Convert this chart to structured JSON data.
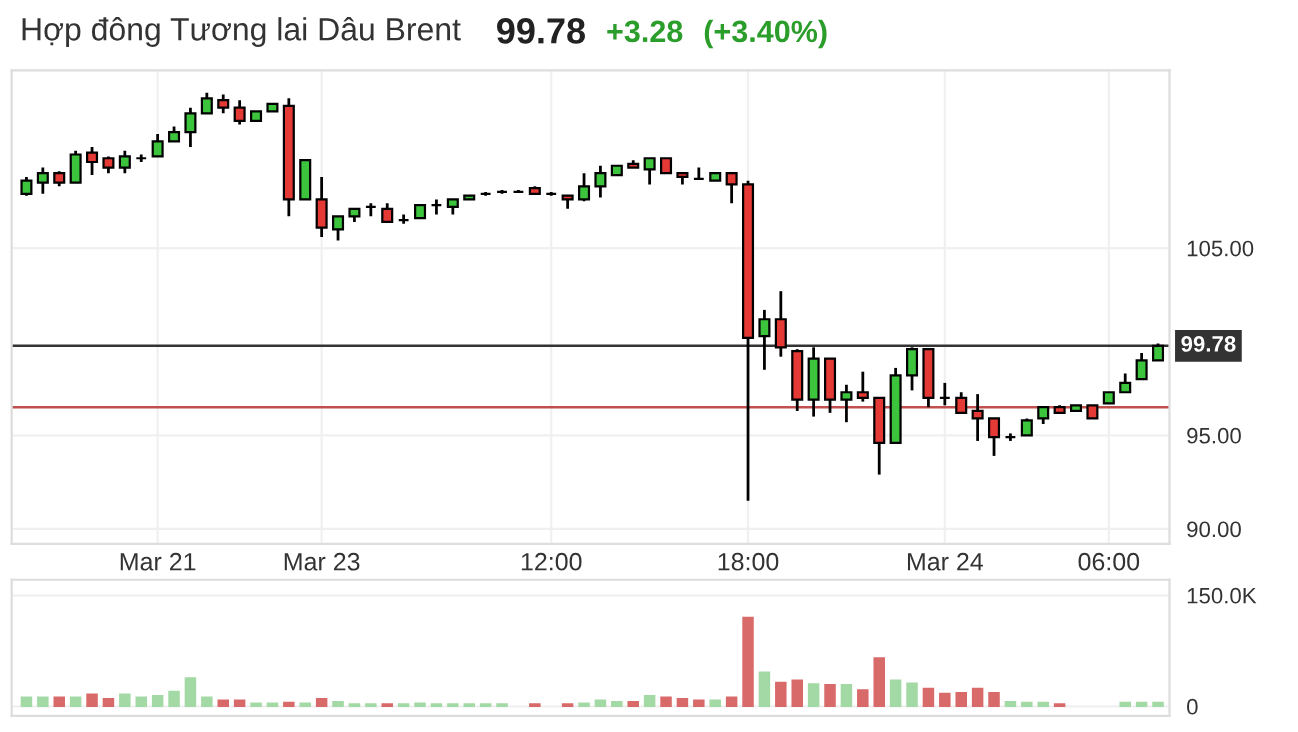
{
  "chart_data": [
    {
      "type": "candlestick",
      "title": "Hợp đông Tương lai Dâu Brent",
      "annotations": [
        "99.78",
        "+3.28",
        "(+3.40%)"
      ],
      "categories": [
        null,
        null,
        null,
        null,
        null,
        null,
        null,
        null,
        "Mar 21",
        null,
        null,
        null,
        null,
        null,
        null,
        null,
        null,
        null,
        "Mar 23",
        null,
        null,
        null,
        null,
        null,
        null,
        null,
        null,
        null,
        null,
        null,
        null,
        null,
        "12:00",
        null,
        null,
        null,
        null,
        null,
        null,
        null,
        null,
        null,
        null,
        null,
        "18:00",
        null,
        null,
        null,
        null,
        null,
        null,
        null,
        null,
        null,
        null,
        null,
        "Mar 24",
        null,
        null,
        null,
        null,
        null,
        null,
        null,
        null,
        null,
        "06:00",
        null,
        null,
        null
      ],
      "ohlc": [
        [
          107.9,
          108.8,
          107.8,
          108.6
        ],
        [
          108.5,
          109.3,
          107.9,
          109.0
        ],
        [
          109.0,
          109.1,
          108.3,
          108.5
        ],
        [
          108.5,
          110.2,
          108.5,
          110.0
        ],
        [
          110.1,
          110.4,
          108.9,
          109.6
        ],
        [
          109.8,
          109.9,
          109.0,
          109.3
        ],
        [
          109.3,
          110.2,
          109.0,
          109.9
        ],
        [
          109.8,
          110.0,
          109.6,
          109.8
        ],
        [
          109.9,
          111.1,
          109.9,
          110.7
        ],
        [
          110.7,
          111.5,
          110.7,
          111.2
        ],
        [
          111.2,
          112.5,
          110.4,
          112.2
        ],
        [
          112.2,
          113.3,
          112.2,
          113.0
        ],
        [
          112.9,
          113.2,
          112.2,
          112.5
        ],
        [
          112.5,
          112.9,
          111.6,
          111.8
        ],
        [
          111.8,
          112.3,
          111.8,
          112.3
        ],
        [
          112.3,
          112.7,
          112.3,
          112.7
        ],
        [
          112.6,
          113.0,
          106.7,
          107.6
        ],
        [
          107.6,
          109.7,
          107.6,
          109.7
        ],
        [
          107.6,
          108.8,
          105.6,
          106.1
        ],
        [
          106.0,
          106.7,
          105.4,
          106.7
        ],
        [
          106.7,
          107.1,
          106.4,
          107.1
        ],
        [
          107.2,
          107.4,
          106.7,
          107.2
        ],
        [
          107.1,
          107.4,
          106.4,
          106.4
        ],
        [
          106.5,
          106.8,
          106.3,
          106.5
        ],
        [
          106.6,
          107.3,
          106.6,
          107.3
        ],
        [
          107.3,
          107.6,
          106.8,
          107.3
        ],
        [
          107.2,
          107.6,
          106.8,
          107.6
        ],
        [
          107.6,
          107.8,
          107.6,
          107.8
        ],
        [
          107.9,
          108.0,
          107.8,
          107.9
        ],
        [
          108.0,
          108.1,
          107.9,
          108.0
        ],
        [
          108.0,
          108.1,
          108.0,
          108.0
        ],
        [
          108.2,
          108.3,
          107.9,
          107.9
        ],
        [
          107.9,
          108.0,
          107.8,
          107.9
        ],
        [
          107.8,
          107.8,
          107.1,
          107.6
        ],
        [
          107.6,
          109.0,
          107.5,
          108.3
        ],
        [
          108.3,
          109.4,
          107.7,
          109.0
        ],
        [
          108.9,
          109.4,
          108.9,
          109.4
        ],
        [
          109.5,
          109.7,
          109.3,
          109.3
        ],
        [
          109.2,
          109.8,
          108.4,
          109.8
        ],
        [
          109.8,
          109.8,
          109.0,
          109.0
        ],
        [
          109.0,
          109.0,
          108.4,
          108.8
        ],
        [
          108.7,
          109.3,
          108.7,
          108.7
        ],
        [
          108.6,
          109.0,
          108.6,
          109.0
        ],
        [
          109.0,
          109.0,
          107.4,
          108.4
        ],
        [
          108.4,
          108.6,
          91.5,
          100.2
        ],
        [
          100.3,
          101.7,
          98.5,
          101.2
        ],
        [
          101.2,
          102.7,
          99.2,
          99.7
        ],
        [
          99.5,
          99.6,
          96.3,
          96.9
        ],
        [
          96.9,
          99.7,
          96.0,
          99.1
        ],
        [
          99.1,
          99.1,
          96.2,
          96.9
        ],
        [
          96.9,
          97.7,
          95.7,
          97.3
        ],
        [
          97.3,
          98.4,
          96.8,
          97.0
        ],
        [
          97.0,
          97.0,
          92.9,
          94.6
        ],
        [
          94.6,
          98.6,
          94.6,
          98.2
        ],
        [
          98.2,
          99.7,
          97.4,
          99.6
        ],
        [
          99.6,
          99.6,
          96.5,
          97.0
        ],
        [
          97.0,
          97.8,
          96.6,
          97.0
        ],
        [
          97.0,
          97.3,
          96.2,
          96.2
        ],
        [
          96.3,
          97.2,
          94.7,
          95.9
        ],
        [
          95.9,
          95.9,
          93.9,
          94.9
        ],
        [
          94.9,
          95.1,
          94.7,
          94.9
        ],
        [
          95.0,
          95.9,
          95.0,
          95.8
        ],
        [
          95.9,
          96.5,
          95.6,
          96.5
        ],
        [
          96.5,
          96.6,
          96.2,
          96.2
        ],
        [
          96.3,
          96.6,
          96.3,
          96.6
        ],
        [
          96.6,
          96.6,
          95.9,
          95.9
        ],
        [
          96.7,
          97.3,
          96.7,
          97.3
        ],
        [
          97.3,
          98.3,
          97.3,
          97.8
        ],
        [
          98.0,
          99.4,
          98.0,
          99.0
        ],
        [
          99.0,
          99.9,
          99.0,
          99.78
        ]
      ],
      "colors": [
        "#3dc43d",
        "#3dc43d",
        "#e53935",
        "#3dc43d",
        "#e53935",
        "#e53935",
        "#3dc43d",
        "#000000",
        "#3dc43d",
        "#3dc43d",
        "#3dc43d",
        "#3dc43d",
        "#e53935",
        "#e53935",
        "#3dc43d",
        "#3dc43d",
        "#e53935",
        "#3dc43d",
        "#e53935",
        "#3dc43d",
        "#3dc43d",
        "#000000",
        "#e53935",
        "#000000",
        "#3dc43d",
        "#000000",
        "#3dc43d",
        "#3dc43d",
        "#000000",
        "#000000",
        "#000000",
        "#e53935",
        "#000000",
        "#e53935",
        "#3dc43d",
        "#3dc43d",
        "#3dc43d",
        "#e53935",
        "#3dc43d",
        "#e53935",
        "#e53935",
        "#000000",
        "#3dc43d",
        "#e53935",
        "#e53935",
        "#3dc43d",
        "#e53935",
        "#e53935",
        "#3dc43d",
        "#e53935",
        "#3dc43d",
        "#e53935",
        "#e53935",
        "#3dc43d",
        "#3dc43d",
        "#e53935",
        "#000000",
        "#e53935",
        "#e53935",
        "#e53935",
        "#000000",
        "#3dc43d",
        "#3dc43d",
        "#e53935",
        "#3dc43d",
        "#e53935",
        "#3dc43d",
        "#3dc43d",
        "#3dc43d",
        "#3dc43d"
      ],
      "ylim": [
        89.2,
        114.5
      ],
      "yticks": [
        {
          "value": 90,
          "label": "90.00"
        },
        {
          "value": 95,
          "label": "95.00"
        },
        {
          "value": 105,
          "label": "105.00"
        }
      ],
      "ref_lines": [
        {
          "axis": "y",
          "value": 99.78,
          "label": "99.78",
          "color": "#333333"
        },
        {
          "axis": "y",
          "value": 96.5,
          "color": "#c0504d"
        }
      ],
      "grid": true
    },
    {
      "type": "bar",
      "categories": [
        null,
        null,
        null,
        null,
        null,
        null,
        null,
        null,
        null,
        null,
        null,
        null,
        null,
        null,
        null,
        null,
        null,
        null,
        null,
        null,
        null,
        null,
        null,
        null,
        null,
        null,
        null,
        null,
        null,
        null,
        null,
        null,
        null,
        null,
        null,
        null,
        null,
        null,
        null,
        null,
        null,
        null,
        null,
        null,
        null,
        null,
        null,
        null,
        null,
        null,
        null,
        null,
        null,
        null,
        null,
        null,
        null,
        null,
        null,
        null,
        null,
        null,
        null,
        null,
        null,
        null,
        null,
        null,
        null,
        null
      ],
      "values": [
        12000,
        12000,
        12000,
        12000,
        16000,
        10000,
        16000,
        12000,
        14000,
        20000,
        38000,
        12000,
        8000,
        8000,
        4000,
        4000,
        5000,
        4000,
        10000,
        6000,
        3000,
        3000,
        3000,
        3000,
        4000,
        3000,
        3000,
        3000,
        3000,
        3000,
        null,
        3000,
        null,
        3000,
        4000,
        8000,
        6000,
        6000,
        14000,
        12000,
        10000,
        8000,
        8000,
        12000,
        120000,
        46000,
        32000,
        35000,
        30000,
        29000,
        29000,
        22000,
        65000,
        35000,
        31000,
        24000,
        17000,
        18000,
        24000,
        18000,
        6000,
        5000,
        5000,
        3000,
        null,
        null,
        null,
        5000,
        5000,
        5000
      ],
      "colors": [
        "#a3d9a5",
        "#a3d9a5",
        "#d96a6a",
        "#a3d9a5",
        "#d96a6a",
        "#d96a6a",
        "#a3d9a5",
        "#a3d9a5",
        "#a3d9a5",
        "#a3d9a5",
        "#a3d9a5",
        "#a3d9a5",
        "#d96a6a",
        "#d96a6a",
        "#a3d9a5",
        "#a3d9a5",
        "#d96a6a",
        "#a3d9a5",
        "#d96a6a",
        "#a3d9a5",
        "#a3d9a5",
        "#a3d9a5",
        "#d96a6a",
        "#a3d9a5",
        "#a3d9a5",
        "#a3d9a5",
        "#a3d9a5",
        "#a3d9a5",
        "#a3d9a5",
        "#a3d9a5",
        "#a3d9a5",
        "#d96a6a",
        "#a3d9a5",
        "#d96a6a",
        "#a3d9a5",
        "#a3d9a5",
        "#a3d9a5",
        "#d96a6a",
        "#a3d9a5",
        "#d96a6a",
        "#d96a6a",
        "#d96a6a",
        "#a3d9a5",
        "#d96a6a",
        "#d96a6a",
        "#a3d9a5",
        "#d96a6a",
        "#d96a6a",
        "#a3d9a5",
        "#d96a6a",
        "#a3d9a5",
        "#d96a6a",
        "#d96a6a",
        "#a3d9a5",
        "#a3d9a5",
        "#d96a6a",
        "#d96a6a",
        "#d96a6a",
        "#d96a6a",
        "#d96a6a",
        "#a3d9a5",
        "#a3d9a5",
        "#a3d9a5",
        "#d96a6a",
        "#a3d9a5",
        "#a3d9a5",
        "#a3d9a5",
        "#a3d9a5",
        "#a3d9a5",
        "#a3d9a5"
      ],
      "ylim": [
        -13000,
        171000
      ],
      "yticks": [
        0,
        {
          "value": 150000,
          "label": "150.0K"
        }
      ],
      "tick_labels": "y",
      "grid": true
    }
  ]
}
